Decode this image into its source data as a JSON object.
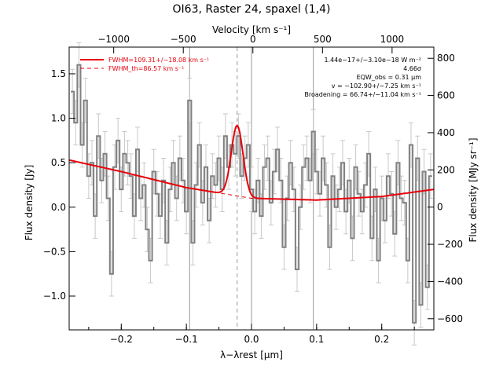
{
  "chart_data": {
    "type": "line",
    "title": "OI63, Raster 24, spaxel (1,4)",
    "xlabel": "λ−λrest [μm]",
    "ylabel": "Flux density [Jy]",
    "y2label": "Flux density [MJy sr⁻¹]",
    "x2label": "Velocity [km s⁻¹]",
    "xlim": [
      -0.28,
      0.28
    ],
    "ylim": [
      -1.38,
      1.8
    ],
    "y2lim": [
      -660,
      860
    ],
    "x2lim": [
      -1320,
      1300
    ],
    "x_ticks": [
      -0.2,
      -0.1,
      0.0,
      0.1,
      0.2
    ],
    "x_tick_labels": [
      "−0.2",
      "−0.1",
      "0.0",
      "0.1",
      "0.2"
    ],
    "y_ticks": [
      -1.0,
      -0.5,
      0.0,
      0.5,
      1.0,
      1.5
    ],
    "y_tick_labels": [
      "−1.0",
      "−0.5",
      "0.0",
      "0.5",
      "1.0",
      "1.5"
    ],
    "y2_ticks": [
      -600,
      -400,
      -200,
      0,
      200,
      400,
      600,
      800
    ],
    "y2_tick_labels": [
      "−600",
      "−400",
      "−200",
      "0",
      "200",
      "400",
      "600",
      "800"
    ],
    "x2_ticks": [
      -1000,
      -500,
      0,
      500,
      1000
    ],
    "x2_tick_labels": [
      "−1000",
      "−500",
      "0",
      "500",
      "1000"
    ],
    "vlines_solid": [
      -0.095,
      0.0,
      0.095
    ],
    "vline_dashed": -0.022,
    "legend": {
      "placement": "top-left",
      "entries": [
        "FWHM=109.31+/−18.08 km s⁻¹",
        "FWHM_th=86.57 km s⁻¹"
      ]
    },
    "annotations": [
      "1.44e−17+/−3.10e−18 W m⁻²",
      "4.66σ",
      "EQW_obs = 0.31 μm",
      "v = −102.90+/−7.25 km s⁻¹",
      "Broadening = 66.74+/−11.04 km s⁻¹"
    ],
    "fit": {
      "continuum": [
        [
          -0.28,
          0.53
        ],
        [
          -0.2,
          0.4
        ],
        [
          -0.1,
          0.22
        ],
        [
          0.0,
          0.1
        ],
        [
          0.1,
          0.08
        ],
        [
          0.2,
          0.12
        ],
        [
          0.28,
          0.2
        ]
      ],
      "line_center": -0.022,
      "line_peak": 0.92
    },
    "series": [
      {
        "x": [
          -0.275,
          -0.27,
          -0.265,
          -0.26,
          -0.255,
          -0.25,
          -0.245,
          -0.24,
          -0.235,
          -0.23,
          -0.225,
          -0.22,
          -0.215,
          -0.21,
          -0.205,
          -0.2,
          -0.195,
          -0.19,
          -0.185,
          -0.18,
          -0.175,
          -0.17,
          -0.165,
          -0.16,
          -0.155,
          -0.15,
          -0.145,
          -0.14,
          -0.135,
          -0.13,
          -0.125,
          -0.12,
          -0.115,
          -0.11,
          -0.105,
          -0.1,
          -0.095,
          -0.09,
          -0.085,
          -0.08,
          -0.075,
          -0.07,
          -0.065,
          -0.06,
          -0.055,
          -0.05,
          -0.045,
          -0.04,
          -0.035,
          -0.03,
          -0.025,
          -0.02,
          -0.015,
          -0.01,
          -0.005,
          0.0,
          0.005,
          0.01,
          0.015,
          0.02,
          0.025,
          0.03,
          0.035,
          0.04,
          0.045,
          0.05,
          0.055,
          0.06,
          0.065,
          0.07,
          0.075,
          0.08,
          0.085,
          0.09,
          0.095,
          0.1,
          0.105,
          0.11,
          0.115,
          0.12,
          0.125,
          0.13,
          0.135,
          0.14,
          0.145,
          0.15,
          0.155,
          0.16,
          0.165,
          0.17,
          0.175,
          0.18,
          0.185,
          0.19,
          0.195,
          0.2,
          0.205,
          0.21,
          0.215,
          0.22,
          0.225,
          0.23,
          0.235,
          0.24,
          0.245,
          0.25,
          0.255,
          0.26,
          0.265,
          0.27,
          0.275
        ],
        "y": [
          1.3,
          0.95,
          1.6,
          0.7,
          1.2,
          0.35,
          0.5,
          -0.1,
          0.8,
          0.3,
          0.6,
          0.1,
          -0.75,
          0.45,
          0.75,
          0.2,
          0.6,
          0.5,
          0.35,
          -0.1,
          0.65,
          0.1,
          0.25,
          -0.25,
          -0.6,
          0.4,
          0.15,
          -0.1,
          0.3,
          -0.4,
          0.2,
          0.5,
          0.1,
          0.55,
          0.3,
          -0.05,
          1.2,
          -0.4,
          0.25,
          0.7,
          0.05,
          0.45,
          -0.15,
          0.35,
          0.25,
          0.55,
          0.2,
          0.8,
          0.45,
          0.7,
          0.6,
          0.8,
          0.35,
          0.55,
          0.7,
          0.2,
          -0.05,
          0.3,
          -0.1,
          0.45,
          0.55,
          0.05,
          0.4,
          0.65,
          0.3,
          -0.45,
          0.1,
          0.5,
          0.2,
          -0.7,
          0.0,
          0.45,
          0.55,
          0.3,
          0.85,
          0.4,
          0.15,
          0.55,
          0.25,
          -0.45,
          0.35,
          0.0,
          0.2,
          0.5,
          -0.05,
          0.3,
          -0.35,
          0.45,
          0.15,
          -0.05,
          0.25,
          0.6,
          -0.35,
          0.2,
          -0.6,
          0.1,
          -0.15,
          0.35,
          0.15,
          -0.3,
          0.5,
          0.1,
          0.05,
          -0.6,
          0.7,
          -1.3,
          0.55,
          -1.1,
          0.4,
          -0.9,
          0.35
        ],
        "err": 0.25
      }
    ]
  }
}
